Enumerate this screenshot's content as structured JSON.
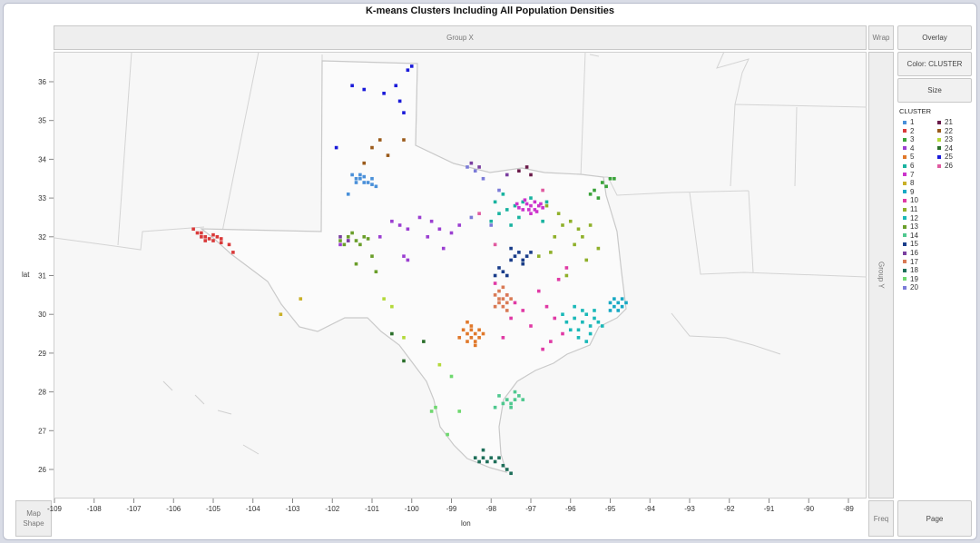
{
  "title": "K-means Clusters Including All Population Densities",
  "zones": {
    "group_x": "Group X",
    "group_y": "Group Y",
    "wrap": "Wrap",
    "freq": "Freq",
    "map_shape": "Map Shape"
  },
  "buttons": {
    "overlay": "Overlay",
    "color": "Color: CLUSTER",
    "size": "Size",
    "page": "Page"
  },
  "legend_title": "CLUSTER",
  "chart_data": {
    "type": "scatter",
    "title": "K-means Clusters Including All Population Densities",
    "xlabel": "lon",
    "ylabel": "lat",
    "xlim": [
      -109,
      -88
    ],
    "ylim": [
      25.3,
      36.7
    ],
    "x_ticks": [
      -109,
      -108,
      -107,
      -106,
      -105,
      -104,
      -103,
      -102,
      -101,
      -100,
      -99,
      -98,
      -97,
      -96,
      -95,
      -94,
      -93,
      -92,
      -91,
      -90,
      -89
    ],
    "x_tick_labels": [
      "-109",
      "-108",
      "-107",
      "-106",
      "-105",
      "-104",
      "-103",
      "-102",
      "-101",
      "-100",
      "-99",
      "-98",
      "-97",
      "-96",
      "-95",
      "-94",
      "-93",
      "-92",
      "-91",
      "-90",
      "-89"
    ],
    "y_ticks": [
      26,
      27,
      28,
      29,
      30,
      31,
      32,
      33,
      34,
      35,
      36
    ],
    "grid": false,
    "legend_position": "right",
    "series": [
      {
        "name": "1",
        "color": "#4a90d9",
        "points": [
          [
            -101.5,
            33.6
          ],
          [
            -101.4,
            33.5
          ],
          [
            -101.3,
            33.5
          ],
          [
            -101.2,
            33.4
          ],
          [
            -101.0,
            33.5
          ],
          [
            -101.3,
            33.6
          ],
          [
            -101.1,
            33.4
          ],
          [
            -101.4,
            33.4
          ],
          [
            -101.6,
            33.1
          ],
          [
            -100.9,
            33.3
          ],
          [
            -101.2,
            33.55
          ],
          [
            -101.0,
            33.35
          ]
        ]
      },
      {
        "name": "2",
        "color": "#d93a3a",
        "points": [
          [
            -105.5,
            32.2
          ],
          [
            -105.4,
            32.1
          ],
          [
            -105.3,
            32.0
          ],
          [
            -105.2,
            32.0
          ],
          [
            -105.1,
            31.95
          ],
          [
            -105.0,
            31.9
          ],
          [
            -104.9,
            32.0
          ],
          [
            -104.8,
            31.95
          ],
          [
            -105.2,
            31.9
          ],
          [
            -105.0,
            32.05
          ],
          [
            -104.6,
            31.8
          ],
          [
            -104.5,
            31.6
          ],
          [
            -105.3,
            32.1
          ],
          [
            -104.8,
            31.85
          ]
        ]
      },
      {
        "name": "3",
        "color": "#3aa33a",
        "points": [
          [
            -95.0,
            33.5
          ],
          [
            -95.2,
            33.4
          ],
          [
            -95.4,
            33.2
          ],
          [
            -95.1,
            33.3
          ],
          [
            -95.3,
            33.0
          ],
          [
            -94.9,
            33.5
          ],
          [
            -95.5,
            33.1
          ]
        ]
      },
      {
        "name": "4",
        "color": "#9b3fd1",
        "points": [
          [
            -100.5,
            32.4
          ],
          [
            -100.3,
            32.3
          ],
          [
            -100.1,
            32.2
          ],
          [
            -99.8,
            32.5
          ],
          [
            -99.5,
            32.4
          ],
          [
            -99.3,
            32.2
          ],
          [
            -99.0,
            32.1
          ],
          [
            -98.8,
            32.3
          ],
          [
            -99.6,
            32.0
          ],
          [
            -100.2,
            31.5
          ],
          [
            -100.1,
            31.4
          ],
          [
            -99.2,
            31.7
          ],
          [
            -101.6,
            31.9
          ],
          [
            -101.8,
            31.8
          ],
          [
            -100.8,
            32.0
          ]
        ]
      },
      {
        "name": "5",
        "color": "#e0782a",
        "points": [
          [
            -98.5,
            29.4
          ],
          [
            -98.4,
            29.5
          ],
          [
            -98.6,
            29.5
          ],
          [
            -98.5,
            29.6
          ],
          [
            -98.3,
            29.4
          ],
          [
            -98.4,
            29.3
          ],
          [
            -98.6,
            29.3
          ],
          [
            -98.7,
            29.6
          ],
          [
            -98.2,
            29.5
          ],
          [
            -98.5,
            29.7
          ],
          [
            -98.3,
            29.6
          ],
          [
            -98.8,
            29.4
          ],
          [
            -98.4,
            29.2
          ],
          [
            -98.6,
            29.8
          ]
        ]
      },
      {
        "name": "6",
        "color": "#19b3a0",
        "points": [
          [
            -97.4,
            32.8
          ],
          [
            -97.2,
            32.9
          ],
          [
            -97.6,
            32.7
          ],
          [
            -97.8,
            32.6
          ],
          [
            -97.3,
            32.5
          ],
          [
            -97.0,
            33.0
          ],
          [
            -96.7,
            32.4
          ],
          [
            -97.9,
            32.9
          ],
          [
            -97.5,
            32.3
          ],
          [
            -96.6,
            32.9
          ],
          [
            -97.7,
            33.1
          ],
          [
            -98.0,
            32.4
          ]
        ]
      },
      {
        "name": "7",
        "color": "#cc33cc",
        "points": [
          [
            -97.0,
            32.8
          ],
          [
            -96.9,
            32.7
          ],
          [
            -97.2,
            32.7
          ],
          [
            -97.1,
            32.85
          ],
          [
            -96.8,
            32.8
          ],
          [
            -97.3,
            32.75
          ],
          [
            -97.0,
            32.6
          ],
          [
            -96.7,
            32.75
          ],
          [
            -97.15,
            32.95
          ],
          [
            -96.9,
            32.9
          ],
          [
            -97.35,
            32.85
          ],
          [
            -96.85,
            32.65
          ],
          [
            -97.05,
            32.7
          ],
          [
            -96.75,
            32.85
          ]
        ]
      },
      {
        "name": "8",
        "color": "#c9b028",
        "points": [
          [
            -103.3,
            30.0
          ],
          [
            -102.8,
            30.4
          ]
        ]
      },
      {
        "name": "9",
        "color": "#17a9c4",
        "points": [
          [
            -95.0,
            30.3
          ],
          [
            -94.9,
            30.2
          ],
          [
            -94.8,
            30.3
          ],
          [
            -94.7,
            30.2
          ],
          [
            -95.0,
            30.1
          ],
          [
            -94.9,
            30.4
          ],
          [
            -94.7,
            30.4
          ],
          [
            -94.8,
            30.1
          ],
          [
            -94.6,
            30.3
          ]
        ]
      },
      {
        "name": "10",
        "color": "#e03aa5",
        "points": [
          [
            -97.9,
            30.8
          ],
          [
            -97.6,
            30.5
          ],
          [
            -97.4,
            30.3
          ],
          [
            -97.2,
            30.1
          ],
          [
            -96.8,
            30.6
          ],
          [
            -96.6,
            30.2
          ],
          [
            -96.4,
            29.9
          ],
          [
            -96.2,
            29.5
          ],
          [
            -96.5,
            29.3
          ],
          [
            -97.0,
            29.7
          ],
          [
            -97.5,
            29.9
          ],
          [
            -96.3,
            30.9
          ],
          [
            -96.1,
            31.2
          ],
          [
            -97.7,
            29.4
          ],
          [
            -96.7,
            29.1
          ]
        ]
      },
      {
        "name": "11",
        "color": "#8fb02a",
        "points": [
          [
            -96.2,
            32.3
          ],
          [
            -96.0,
            32.4
          ],
          [
            -95.8,
            32.2
          ],
          [
            -96.4,
            32.0
          ],
          [
            -95.9,
            31.8
          ],
          [
            -96.5,
            31.6
          ],
          [
            -96.8,
            31.5
          ],
          [
            -95.7,
            32.0
          ],
          [
            -96.3,
            32.6
          ],
          [
            -95.5,
            32.3
          ],
          [
            -95.3,
            31.7
          ],
          [
            -96.6,
            32.8
          ],
          [
            -97.2,
            31.3
          ],
          [
            -96.1,
            31.0
          ],
          [
            -95.6,
            31.4
          ]
        ]
      },
      {
        "name": "12",
        "color": "#1ab8b8",
        "points": [
          [
            -95.9,
            29.9
          ],
          [
            -95.7,
            29.8
          ],
          [
            -95.5,
            29.7
          ],
          [
            -95.8,
            29.6
          ],
          [
            -96.1,
            29.8
          ],
          [
            -95.6,
            30.0
          ],
          [
            -95.4,
            29.9
          ],
          [
            -96.0,
            29.6
          ],
          [
            -95.7,
            30.1
          ],
          [
            -95.3,
            29.8
          ],
          [
            -95.9,
            30.2
          ],
          [
            -95.5,
            29.5
          ],
          [
            -95.2,
            29.7
          ],
          [
            -95.8,
            29.4
          ],
          [
            -96.2,
            30.0
          ],
          [
            -95.6,
            29.3
          ],
          [
            -95.4,
            30.1
          ]
        ]
      },
      {
        "name": "13",
        "color": "#6a9e2a",
        "points": [
          [
            -101.8,
            31.9
          ],
          [
            -101.6,
            32.0
          ],
          [
            -101.4,
            31.9
          ],
          [
            -101.2,
            32.0
          ],
          [
            -101.5,
            32.1
          ],
          [
            -101.7,
            31.8
          ],
          [
            -101.3,
            31.8
          ],
          [
            -101.1,
            31.95
          ],
          [
            -101.0,
            31.5
          ],
          [
            -100.9,
            31.1
          ],
          [
            -101.4,
            31.3
          ]
        ]
      },
      {
        "name": "14",
        "color": "#4fc88f",
        "points": [
          [
            -97.6,
            27.8
          ],
          [
            -97.5,
            27.7
          ],
          [
            -97.4,
            27.8
          ],
          [
            -97.7,
            27.7
          ],
          [
            -97.3,
            27.9
          ],
          [
            -97.5,
            27.6
          ],
          [
            -97.8,
            27.9
          ],
          [
            -97.2,
            27.8
          ],
          [
            -97.4,
            28.0
          ],
          [
            -97.9,
            27.6
          ]
        ]
      },
      {
        "name": "15",
        "color": "#1a3d8a",
        "points": [
          [
            -97.4,
            31.5
          ],
          [
            -97.3,
            31.6
          ],
          [
            -97.1,
            31.5
          ],
          [
            -97.2,
            31.4
          ],
          [
            -97.0,
            31.6
          ],
          [
            -97.5,
            31.4
          ],
          [
            -97.7,
            31.1
          ],
          [
            -97.9,
            31.0
          ],
          [
            -97.6,
            31.0
          ],
          [
            -97.8,
            31.2
          ],
          [
            -97.2,
            31.3
          ],
          [
            -97.5,
            31.7
          ]
        ]
      },
      {
        "name": "16",
        "color": "#7a3fa0",
        "points": [
          [
            -101.6,
            31.9
          ],
          [
            -101.8,
            32.0
          ],
          [
            -98.5,
            33.9
          ],
          [
            -98.3,
            33.8
          ],
          [
            -97.6,
            33.6
          ]
        ]
      },
      {
        "name": "17",
        "color": "#d97a55",
        "points": [
          [
            -97.8,
            30.3
          ],
          [
            -97.7,
            30.4
          ],
          [
            -97.6,
            30.5
          ],
          [
            -97.7,
            30.2
          ],
          [
            -97.9,
            30.5
          ],
          [
            -97.6,
            30.3
          ],
          [
            -97.8,
            30.6
          ],
          [
            -97.5,
            30.4
          ],
          [
            -97.9,
            30.2
          ],
          [
            -97.7,
            30.7
          ],
          [
            -97.6,
            30.1
          ],
          [
            -97.8,
            30.4
          ]
        ]
      },
      {
        "name": "18",
        "color": "#1f6f5a",
        "points": [
          [
            -98.3,
            26.2
          ],
          [
            -98.2,
            26.3
          ],
          [
            -98.1,
            26.2
          ],
          [
            -98.0,
            26.3
          ],
          [
            -97.9,
            26.2
          ],
          [
            -97.7,
            26.1
          ],
          [
            -97.6,
            26.0
          ],
          [
            -97.5,
            25.9
          ],
          [
            -98.2,
            26.5
          ],
          [
            -98.4,
            26.3
          ],
          [
            -97.8,
            26.3
          ]
        ]
      },
      {
        "name": "19",
        "color": "#6ed86e",
        "points": [
          [
            -99.1,
            26.9
          ],
          [
            -98.8,
            27.5
          ],
          [
            -99.5,
            27.5
          ],
          [
            -99.4,
            27.6
          ],
          [
            -99.0,
            28.4
          ]
        ]
      },
      {
        "name": "20",
        "color": "#7b7bd8",
        "points": [
          [
            -98.6,
            33.8
          ],
          [
            -98.4,
            33.7
          ],
          [
            -98.2,
            33.5
          ],
          [
            -97.8,
            33.2
          ],
          [
            -98.0,
            32.3
          ],
          [
            -98.5,
            32.5
          ]
        ]
      },
      {
        "name": "21",
        "color": "#6a1b4a",
        "points": [
          [
            -97.3,
            33.7
          ],
          [
            -97.1,
            33.8
          ],
          [
            -97.0,
            33.6
          ]
        ]
      },
      {
        "name": "22",
        "color": "#9a5a1a",
        "points": [
          [
            -101.0,
            34.3
          ],
          [
            -100.6,
            34.1
          ],
          [
            -100.8,
            34.5
          ],
          [
            -101.2,
            33.9
          ],
          [
            -100.2,
            34.5
          ]
        ]
      },
      {
        "name": "23",
        "color": "#b3d93a",
        "points": [
          [
            -100.7,
            30.4
          ],
          [
            -100.5,
            30.2
          ],
          [
            -99.3,
            28.7
          ],
          [
            -100.2,
            29.4
          ]
        ]
      },
      {
        "name": "24",
        "color": "#2a6e2a",
        "points": [
          [
            -100.5,
            29.5
          ],
          [
            -100.2,
            28.8
          ],
          [
            -99.7,
            29.3
          ]
        ]
      },
      {
        "name": "25",
        "color": "#1a1ad9",
        "points": [
          [
            -101.9,
            34.3
          ],
          [
            -101.5,
            35.9
          ],
          [
            -101.2,
            35.8
          ],
          [
            -100.7,
            35.7
          ],
          [
            -100.3,
            35.5
          ],
          [
            -100.0,
            36.4
          ],
          [
            -100.1,
            36.3
          ],
          [
            -100.4,
            35.9
          ],
          [
            -100.2,
            35.2
          ]
        ]
      },
      {
        "name": "26",
        "color": "#e05aa0",
        "points": [
          [
            -98.3,
            32.6
          ],
          [
            -97.9,
            31.8
          ],
          [
            -96.7,
            33.2
          ]
        ]
      }
    ]
  }
}
